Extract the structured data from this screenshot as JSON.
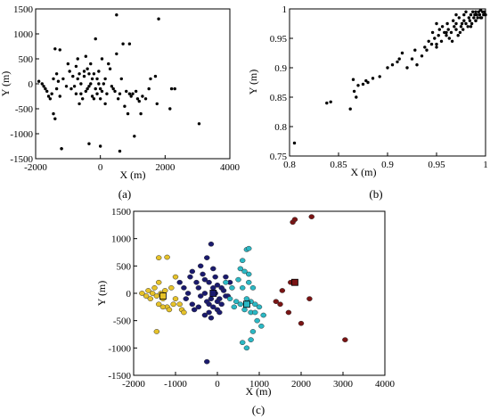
{
  "chart_data": [
    {
      "type": "scatter",
      "panel_label": "(a)",
      "xlabel": "X (m)",
      "ylabel": "Y (m)",
      "xlim": [
        -2000,
        4000
      ],
      "ylim": [
        -1500,
        1500
      ],
      "xticks": [
        "-2000",
        "0",
        "2000",
        "4000"
      ],
      "yticks": [
        "1500",
        "1000",
        "500",
        "0",
        "-500",
        "-1000",
        "-1500"
      ],
      "marker_color": "#000000",
      "x": [
        -1900,
        -1800,
        -1750,
        -1700,
        -1650,
        -1600,
        -1550,
        -1500,
        -1450,
        -1400,
        -1400,
        -1350,
        -1350,
        -1300,
        -1250,
        -1250,
        -1200,
        -1150,
        -1050,
        -1000,
        -950,
        -900,
        -850,
        -800,
        -750,
        -750,
        -700,
        -700,
        -650,
        -650,
        -600,
        -600,
        -550,
        -500,
        -500,
        -450,
        -450,
        -400,
        -400,
        -350,
        -350,
        -300,
        -300,
        -250,
        -250,
        -200,
        -200,
        -150,
        -150,
        -100,
        -100,
        -50,
        -50,
        0,
        0,
        50,
        50,
        100,
        150,
        150,
        200,
        250,
        300,
        350,
        400,
        450,
        500,
        500,
        550,
        600,
        650,
        700,
        750,
        800,
        850,
        900,
        900,
        950,
        1000,
        1050,
        1100,
        1150,
        1200,
        1250,
        1300,
        1400,
        1500,
        1550,
        1700,
        1750,
        1800,
        2150,
        2200,
        2300,
        3050,
        -1450,
        -1200,
        -350,
        0,
        600
      ],
      "y": [
        50,
        0,
        -50,
        -100,
        -150,
        -250,
        -300,
        -200,
        100,
        -700,
        700,
        200,
        -100,
        50,
        -250,
        680,
        -1300,
        100,
        -50,
        400,
        250,
        -100,
        150,
        -50,
        350,
        -200,
        100,
        500,
        200,
        -400,
        0,
        -200,
        -300,
        150,
        250,
        -150,
        550,
        -100,
        300,
        200,
        -50,
        0,
        400,
        100,
        -250,
        200,
        -300,
        900,
        -100,
        -200,
        100,
        250,
        0,
        -300,
        -100,
        500,
        -150,
        0,
        -400,
        100,
        -200,
        400,
        300,
        -50,
        -100,
        -150,
        1380,
        600,
        -300,
        -200,
        100,
        800,
        -450,
        -150,
        -600,
        -200,
        800,
        -250,
        -200,
        -1050,
        -150,
        -300,
        -350,
        -600,
        -250,
        -300,
        -100,
        100,
        150,
        -400,
        1300,
        -500,
        -100,
        -100,
        -800,
        -600,
        -1300,
        -1200,
        -1250,
        -1350
      ],
      "x_eff": [],
      "y_eff": []
    },
    {
      "type": "scatter",
      "panel_label": "(b)",
      "xlabel": "X (m)",
      "ylabel": "Y (m)",
      "xlim": [
        0.8,
        1.0
      ],
      "ylim": [
        0.75,
        1.0
      ],
      "xticks": [
        "0.8",
        "0.85",
        "0.9",
        "0.95",
        "1"
      ],
      "yticks": [
        "1",
        "0.95",
        "0.9",
        "0.85",
        "0.8",
        "0.75"
      ],
      "marker_color": "#000000",
      "x": [
        0.805,
        0.838,
        0.842,
        0.862,
        0.865,
        0.866,
        0.868,
        0.87,
        0.875,
        0.878,
        0.88,
        0.885,
        0.892,
        0.9,
        0.905,
        0.91,
        0.912,
        0.915,
        0.92,
        0.925,
        0.928,
        0.93,
        0.935,
        0.938,
        0.94,
        0.942,
        0.945,
        0.946,
        0.948,
        0.95,
        0.95,
        0.952,
        0.953,
        0.955,
        0.956,
        0.958,
        0.96,
        0.961,
        0.962,
        0.963,
        0.965,
        0.966,
        0.967,
        0.968,
        0.97,
        0.97,
        0.972,
        0.973,
        0.974,
        0.975,
        0.976,
        0.977,
        0.978,
        0.978,
        0.98,
        0.98,
        0.982,
        0.983,
        0.984,
        0.985,
        0.986,
        0.987,
        0.988,
        0.989,
        0.99,
        0.99,
        0.991,
        0.992,
        0.993,
        0.994,
        0.995,
        0.996,
        0.997,
        0.998,
        0.999,
        1.0,
        0.985,
        0.99,
        0.995,
        0.97,
        0.96,
        0.95
      ],
      "y": [
        0.772,
        0.84,
        0.842,
        0.83,
        0.88,
        0.86,
        0.85,
        0.87,
        0.872,
        0.878,
        0.875,
        0.882,
        0.885,
        0.9,
        0.905,
        0.91,
        0.915,
        0.925,
        0.9,
        0.915,
        0.93,
        0.905,
        0.92,
        0.935,
        0.93,
        0.945,
        0.94,
        0.96,
        0.95,
        0.975,
        0.94,
        0.955,
        0.965,
        0.945,
        0.97,
        0.96,
        0.955,
        0.975,
        0.965,
        0.95,
        0.96,
        0.945,
        0.98,
        0.97,
        0.965,
        0.975,
        0.955,
        0.985,
        0.96,
        0.97,
        0.975,
        0.965,
        0.99,
        0.98,
        0.975,
        0.995,
        0.97,
        0.985,
        0.98,
        0.99,
        0.975,
        0.995,
        0.985,
        0.99,
        0.98,
        0.995,
        0.99,
        0.985,
        0.995,
        0.99,
        0.998,
        0.985,
        0.995,
        0.99,
        0.995,
        0.99,
        0.97,
        0.98,
        0.985,
        0.99,
        0.96,
        0.935
      ],
      "x_eff": [],
      "y_eff": []
    },
    {
      "type": "scatter",
      "panel_label": "(c)",
      "xlabel": "X (m)",
      "ylabel": "Y (m)",
      "xlim": [
        -2000,
        4000
      ],
      "ylim": [
        -1500,
        1500
      ],
      "xticks": [
        "-2000",
        "-1000",
        "0",
        "1000",
        "2000",
        "3000",
        "4000"
      ],
      "yticks": [
        "1500",
        "1000",
        "500",
        "0",
        "-500",
        "-1000",
        "-1500"
      ],
      "series": [
        {
          "color": "#e6c229",
          "x": [
            -1800,
            -1700,
            -1650,
            -1600,
            -1550,
            -1500,
            -1450,
            -1400,
            -1400,
            -1350,
            -1300,
            -1250,
            -1200,
            -1150,
            -1100,
            -1050,
            -1000,
            -1000,
            -1400,
            -1200,
            -1450,
            -1300,
            -900,
            -850,
            -800
          ],
          "y": [
            0,
            -50,
            50,
            -100,
            0,
            100,
            -50,
            200,
            -200,
            0,
            -100,
            50,
            -250,
            -300,
            100,
            -200,
            300,
            -100,
            650,
            660,
            -700,
            -250,
            -200,
            -300,
            -350
          ]
        },
        {
          "color": "#1a1a6e",
          "x": [
            -900,
            -800,
            -750,
            -700,
            -650,
            -600,
            -600,
            -550,
            -500,
            -450,
            -450,
            -400,
            -400,
            -350,
            -300,
            -300,
            -250,
            -250,
            -200,
            -200,
            -150,
            -150,
            -100,
            -100,
            -50,
            -50,
            0,
            0,
            50,
            100,
            150,
            200,
            250,
            300,
            -300,
            -200,
            -100,
            0,
            100,
            200,
            50,
            -150,
            -250
          ],
          "y": [
            200,
            100,
            -100,
            0,
            300,
            -200,
            400,
            -300,
            200,
            100,
            -250,
            500,
            -50,
            350,
            0,
            250,
            650,
            -150,
            200,
            -350,
            900,
            -100,
            100,
            -250,
            300,
            0,
            -300,
            150,
            -100,
            -200,
            50,
            300,
            -50,
            200,
            -400,
            -200,
            450,
            -150,
            100,
            -50,
            -350,
            -450,
            -1250
          ]
        },
        {
          "color": "#2bb8c4",
          "x": [
            200,
            300,
            350,
            400,
            450,
            500,
            550,
            600,
            650,
            700,
            750,
            800,
            850,
            900,
            950,
            1000,
            1050,
            1100,
            600,
            700,
            800,
            900,
            700,
            800,
            600,
            550,
            650,
            750,
            850,
            750
          ],
          "y": [
            200,
            -100,
            100,
            -250,
            -150,
            250,
            -200,
            100,
            -300,
            -100,
            200,
            -350,
            100,
            -200,
            -500,
            -250,
            -600,
            -400,
            600,
            800,
            -150,
            -350,
            -1000,
            -850,
            -900,
            450,
            400,
            350,
            -700,
            820
          ]
        },
        {
          "color": "#7a1414",
          "x": [
            1400,
            1500,
            1700,
            1750,
            1800,
            1850,
            2000,
            2200,
            2250,
            3050,
            1550
          ],
          "y": [
            -150,
            -200,
            -350,
            200,
            1300,
            1350,
            -550,
            -100,
            1400,
            -850,
            50
          ]
        }
      ],
      "centroids": {
        "x": [
          -1300,
          -100,
          700,
          1850
        ],
        "y": [
          -50,
          0,
          -200,
          200
        ]
      }
    }
  ]
}
